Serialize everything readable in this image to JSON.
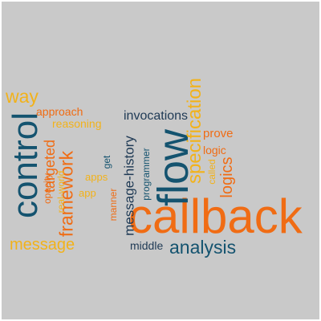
{
  "colors": {
    "background": "#c9c9c9",
    "dark_teal": "#14536f",
    "orange": "#f06c14",
    "yellow": "#f2b21a",
    "navy": "#1f3a55"
  },
  "words": {
    "callback": "callback",
    "flow": "flow",
    "control": "control",
    "specification": "specification",
    "framework": "framework",
    "message_history": "message-history",
    "analysis": "analysis",
    "invocations": "invocations",
    "targeted": "targeted",
    "message": "message",
    "way": "way",
    "logics": "logics",
    "approach": "approach",
    "reasoning": "reasoning",
    "prove": "prove",
    "logic": "logic",
    "middle": "middle",
    "programmer": "programmer",
    "opacity": "opacity",
    "real_world": "real-world",
    "called": "called",
    "apps": "apps",
    "app": "app",
    "get": "get",
    "manner": "manner"
  }
}
